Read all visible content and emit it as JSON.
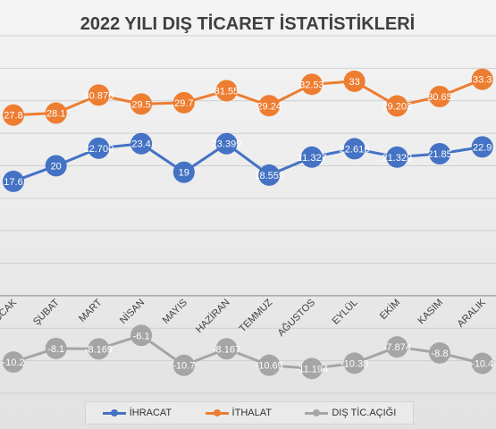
{
  "chart_data": {
    "type": "line",
    "title": "2022 YILI DIŞ TİCARET İSTATİSTİKLERİ",
    "categories": [
      "OCAK",
      "ŞUBAT",
      "MART",
      "NİSAN",
      "MAYIS",
      "HAZİRAN",
      "TEMMUZ",
      "AĞUSTOS",
      "EYLÜL",
      "EKİM",
      "KASIM",
      "ARALIK"
    ],
    "category_labels_visible": [
      "ĞCAK",
      "ŞUBAT",
      "MART",
      "NİSAN",
      "MAYIS",
      "HAZİRAN",
      "TEMMUZ",
      "AĞUSTOS",
      "EYLÜL",
      "EKİM",
      "KASIM",
      "ARALIK"
    ],
    "series": [
      {
        "name": "İHRACAT",
        "color": "#4472c4",
        "values": [
          17.6,
          20,
          22.7,
          23.4,
          19,
          23.399,
          18.559,
          21.327,
          22.616,
          21.329,
          21.85,
          22.9
        ],
        "labels": [
          "17.6",
          "20",
          "22.700",
          "23.4",
          "19",
          "23.399",
          "18.559",
          "21.327",
          "22.616",
          "21.329",
          "21.85",
          "22.9"
        ]
      },
      {
        "name": "İTHALAT",
        "color": "#ed7d31",
        "values": [
          27.8,
          28.1,
          30.876,
          29.5,
          29.7,
          31.55,
          29.24,
          32.53,
          33,
          29.202,
          30.65,
          33.3
        ],
        "labels": [
          "27.8",
          "28.1",
          "30.876",
          "29.5",
          "29.7",
          "31.55",
          "29.24",
          "32.53",
          "33",
          "29.202",
          "30.65",
          "33.3"
        ]
      },
      {
        "name": "DIŞ TİC.AÇIĞI",
        "color": "#a5a5a5",
        "values": [
          -10.2,
          -8.1,
          -8.169,
          -6.1,
          -10.7,
          -8.167,
          -10.69,
          -11.194,
          -10.38,
          -7.874,
          -8.8,
          -10.4
        ],
        "labels": [
          "-10.2",
          "-8.1",
          "-8.169",
          "-6.1",
          "-10.7",
          "-8.167",
          "-10.69",
          "-11.194",
          "-10.38",
          "-7.874",
          "-8.8",
          "-10.4"
        ]
      }
    ],
    "xlabel": "",
    "ylabel": "",
    "ylim": [
      -15,
      40
    ],
    "grid": true,
    "legend_position": "bottom"
  }
}
